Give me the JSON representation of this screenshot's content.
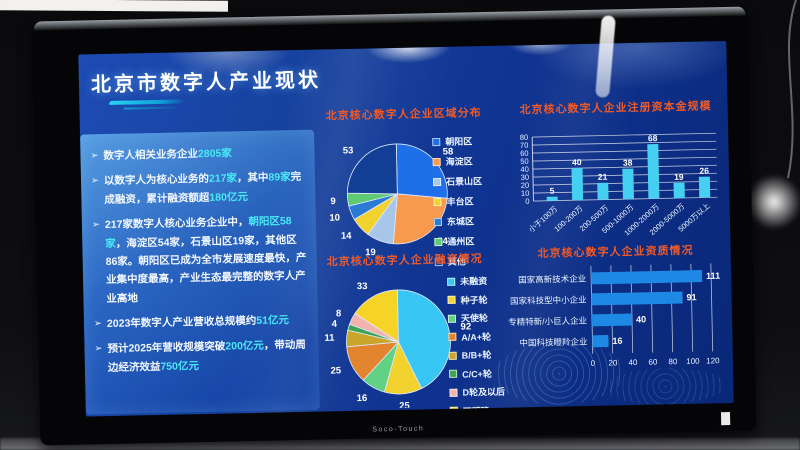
{
  "photo": {
    "brand": "Soco-Touch"
  },
  "colors": {
    "highlight": "#49e9f7",
    "chart_title": "#f05a28"
  },
  "slide": {
    "title": "北京市数字人产业现状",
    "panel": {
      "bullet_marker": "➢",
      "bullets": [
        {
          "segments": [
            {
              "t": "数字人相关业务企业",
              "hl": false
            },
            {
              "t": "2805家",
              "hl": true
            }
          ]
        },
        {
          "segments": [
            {
              "t": "以数字人为核心业务的",
              "hl": false
            },
            {
              "t": "217家",
              "hl": true
            },
            {
              "t": "，其中",
              "hl": false
            },
            {
              "t": "89家",
              "hl": true
            },
            {
              "t": "完成融资，累计融资额超",
              "hl": false
            },
            {
              "t": "180亿元",
              "hl": true
            }
          ]
        },
        {
          "segments": [
            {
              "t": "217家数字人核心业务企业中，",
              "hl": false
            },
            {
              "t": "朝阳区58家",
              "hl": true
            },
            {
              "t": "，海淀区54家，石景山区19家，其他区86家。朝阳区已成为全市发展速度最快，产业集中度最高，产业生态最完整的数字人产业高地",
              "hl": false
            }
          ]
        },
        {
          "segments": [
            {
              "t": "2023年数字人产业营收总规模约",
              "hl": false
            },
            {
              "t": "51亿元",
              "hl": true
            }
          ]
        },
        {
          "segments": [
            {
              "t": "预计2025年营收规模突破",
              "hl": false
            },
            {
              "t": "200亿元",
              "hl": true
            },
            {
              "t": "，带动周边经济效益",
              "hl": false
            },
            {
              "t": "750亿元",
              "hl": true
            }
          ]
        }
      ]
    }
  },
  "chart_data": [
    {
      "type": "pie",
      "title": "北京核心数字人企业区域分布",
      "legend_position": "right",
      "series": [
        {
          "label": "朝阳区",
          "value": 58,
          "color": "#1f6fe8"
        },
        {
          "label": "海淀区",
          "value": 54,
          "color": "#f79a4d"
        },
        {
          "label": "石景山区",
          "value": 19,
          "color": "#a7c6e8"
        },
        {
          "label": "丰台区",
          "value": 14,
          "color": "#f2d22e"
        },
        {
          "label": "东城区",
          "value": 10,
          "color": "#2b7bd4"
        },
        {
          "label": "通州区",
          "value": 9,
          "color": "#5ecb72"
        },
        {
          "label": "其他",
          "value": 53,
          "color": "#123e96"
        }
      ]
    },
    {
      "type": "bar",
      "title": "北京核心数字人企业注册资本金规模",
      "categories": [
        "小于100万",
        "100-200万",
        "200-500万",
        "500-1000万",
        "1000-2000万",
        "2000-5000万",
        "5000万以上"
      ],
      "values": [
        5,
        40,
        21,
        38,
        68,
        19,
        26
      ],
      "ylim": [
        0,
        80
      ],
      "ytick_step": 10,
      "bar_color": "#45d0f2",
      "grid": true,
      "xlabel": "",
      "ylabel": ""
    },
    {
      "type": "pie",
      "title": "北京核心数字人企业融资情况",
      "legend_position": "right",
      "series": [
        {
          "label": "未融资",
          "value": 92,
          "color": "#38c6f4"
        },
        {
          "label": "种子轮",
          "value": 25,
          "color": "#f2d22e"
        },
        {
          "label": "天使轮",
          "value": 16,
          "color": "#63d184"
        },
        {
          "label": "A/A+轮",
          "value": 25,
          "color": "#e2852e"
        },
        {
          "label": "B/B+轮",
          "value": 11,
          "color": "#c9a62a"
        },
        {
          "label": "C/C+轮",
          "value": 4,
          "color": "#3da552"
        },
        {
          "label": "D轮及以后",
          "value": 8,
          "color": "#f2b3ac"
        },
        {
          "label": "不明确",
          "value": 33,
          "color": "#f5d327"
        }
      ]
    },
    {
      "type": "horizontal_bar",
      "title": "北京核心数字人企业资质情况",
      "categories": [
        "国家高新技术企业",
        "国家科技型中小企业",
        "专精特新/小巨人企业",
        "中国科技瞪羚企业"
      ],
      "values": [
        111,
        91,
        40,
        16
      ],
      "xlim": [
        0,
        120
      ],
      "xtick_step": 20,
      "bar_color": "#1e88e5",
      "grid": true,
      "xlabel": "",
      "ylabel": ""
    }
  ]
}
